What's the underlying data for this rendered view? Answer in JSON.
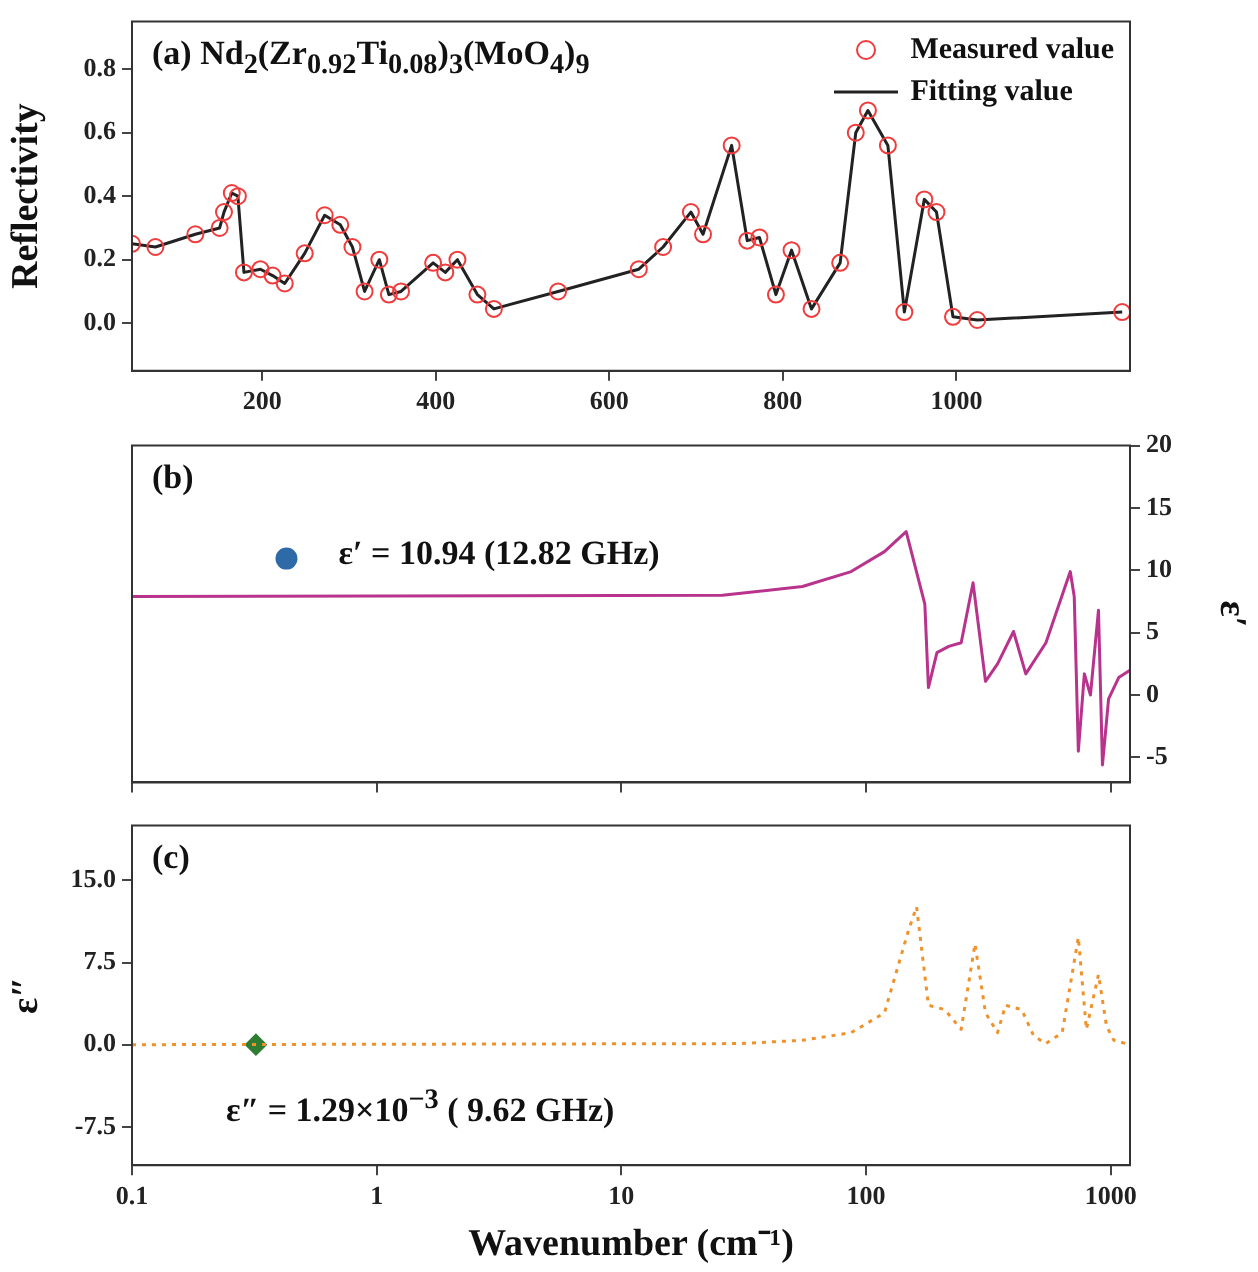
{
  "chart_data": [
    {
      "type": "line",
      "annotations": [
        "(a) Nd$_{2}$(Zr$_{0.92}$Ti$_{0.08}$)$_{3}$(MoO$_{4}$)$_{9}$"
      ],
      "ylabel": "Reflectivity",
      "xlim": [
        50,
        1200
      ],
      "xticks": [
        200,
        400,
        600,
        800,
        1000
      ],
      "ylim": [
        -0.15,
        0.95
      ],
      "yticks": [
        {
          "value": 0,
          "label": "0.0"
        },
        0.2,
        0.4,
        0.6,
        0.8
      ],
      "legend": "top right",
      "grid": false,
      "x": [
        50,
        77,
        123,
        151,
        156,
        165,
        172,
        179,
        198,
        212,
        226,
        249,
        272,
        290,
        304,
        318,
        335,
        346,
        360,
        397,
        411,
        425,
        448,
        467,
        541,
        634,
        662,
        694,
        708,
        741,
        759,
        773,
        792,
        810,
        833,
        866,
        884,
        898,
        921,
        940,
        963,
        977,
        996,
        1024,
        1191
      ],
      "series": [
        {
          "name": "Measured value",
          "type": "scatter",
          "marker": "circle",
          "color": "#f03c3c",
          "values": [
            0.25,
            0.24,
            0.28,
            0.3,
            0.35,
            0.41,
            0.4,
            0.16,
            0.17,
            0.15,
            0.125,
            0.22,
            0.34,
            0.31,
            0.24,
            0.1,
            0.2,
            0.09,
            0.1,
            0.19,
            0.16,
            0.2,
            0.09,
            0.045,
            0.1,
            0.17,
            0.24,
            0.35,
            0.28,
            0.56,
            0.26,
            0.27,
            0.09,
            0.23,
            0.045,
            0.19,
            0.6,
            0.67,
            0.56,
            0.035,
            0.39,
            0.35,
            0.02,
            0.01,
            0.035
          ]
        },
        {
          "name": "Fitting value",
          "color": "#222222",
          "values": [
            0.25,
            0.24,
            0.28,
            0.3,
            0.35,
            0.41,
            0.4,
            0.16,
            0.17,
            0.15,
            0.125,
            0.22,
            0.34,
            0.31,
            0.24,
            0.1,
            0.2,
            0.09,
            0.1,
            0.19,
            0.16,
            0.2,
            0.09,
            0.045,
            0.1,
            0.17,
            0.24,
            0.35,
            0.28,
            0.56,
            0.26,
            0.27,
            0.09,
            0.23,
            0.045,
            0.19,
            0.6,
            0.67,
            0.56,
            0.035,
            0.39,
            0.35,
            0.02,
            0.01,
            0.035
          ]
        }
      ]
    },
    {
      "type": "line",
      "annotations": [
        "(b)",
        {
          "text": "ε′ = 10.94 (12.82 GHz)",
          "x": 0.428,
          "y": 10.94
        }
      ],
      "ylabel": "ε′",
      "log": "x",
      "xlim": [
        0.1,
        1200
      ],
      "xticks": [
        0.1,
        1,
        10,
        100,
        1000
      ],
      "ylim": [
        -7,
        20
      ],
      "yticks": [
        -5,
        0,
        5,
        10,
        15,
        20
      ],
      "tick_labels": "y",
      "legend": false,
      "grid": false,
      "series": [
        {
          "color": "#b8338c",
          "line_style": "solid",
          "x": [
            0.1,
            25.9,
            55,
            87,
            119,
            146,
            174,
            180,
            195,
            218,
            245,
            274,
            308,
            345,
            401,
            450,
            544,
            684,
            710,
            738,
            781,
            827,
            892,
            926,
            981,
            1079,
            1200
          ],
          "values": [
            7.9,
            8.0,
            8.7,
            9.9,
            11.5,
            13.1,
            7.3,
            0.6,
            3.4,
            3.9,
            4.2,
            9.0,
            1.1,
            2.5,
            5.1,
            1.7,
            4.2,
            9.9,
            7.9,
            -4.5,
            1.7,
            0,
            6.8,
            -5.6,
            -0.3,
            1.4,
            2.0
          ]
        },
        {
          "type": "scatter",
          "marker": "circle",
          "color": "#2f6aa8",
          "x": [
            0.428
          ],
          "values": [
            10.94
          ]
        }
      ]
    },
    {
      "type": "line",
      "annotations": [
        "(c)",
        {
          "text": "ε″ = 1.29×10$^{−3}$ ( 9.62 GHz)",
          "x": 0.321,
          "y": 0.00129
        }
      ],
      "xlabel": "Wavenumber (cm⁻¹)",
      "ylabel": "ε″",
      "log": "x",
      "xlim": [
        0.1,
        1200
      ],
      "xticks": [
        0.1,
        1,
        10,
        100,
        1000
      ],
      "ylim": [
        -11,
        20
      ],
      "yticks": [
        {
          "value": -7.5,
          "label": "-7.5"
        },
        {
          "value": 0,
          "label": "0.0"
        },
        7.5,
        {
          "value": 15,
          "label": "15.0"
        }
      ],
      "legend": false,
      "grid": false,
      "series": [
        {
          "color": "#f0922b",
          "line_style": "dotted",
          "x": [
            0.1,
            30,
            55,
            87,
            119,
            149,
            161,
            180,
            210,
            245,
            279,
            308,
            345,
            372,
            433,
            485,
            544,
            634,
            738,
            796,
            892,
            962,
            1031,
            1200
          ],
          "values": [
            0,
            0.1,
            0.4,
            1.1,
            2.9,
            10.4,
            12.6,
            3.6,
            3.2,
            1.4,
            9.2,
            2.9,
            1.1,
            3.6,
            3.2,
            0.8,
            0.1,
            1.1,
            9.8,
            1.4,
            6.4,
            1.7,
            0.4,
            0
          ]
        },
        {
          "type": "scatter",
          "marker": "diamond",
          "color": "#2e7d32",
          "x": [
            0.321
          ],
          "values": [
            0
          ]
        }
      ]
    }
  ]
}
